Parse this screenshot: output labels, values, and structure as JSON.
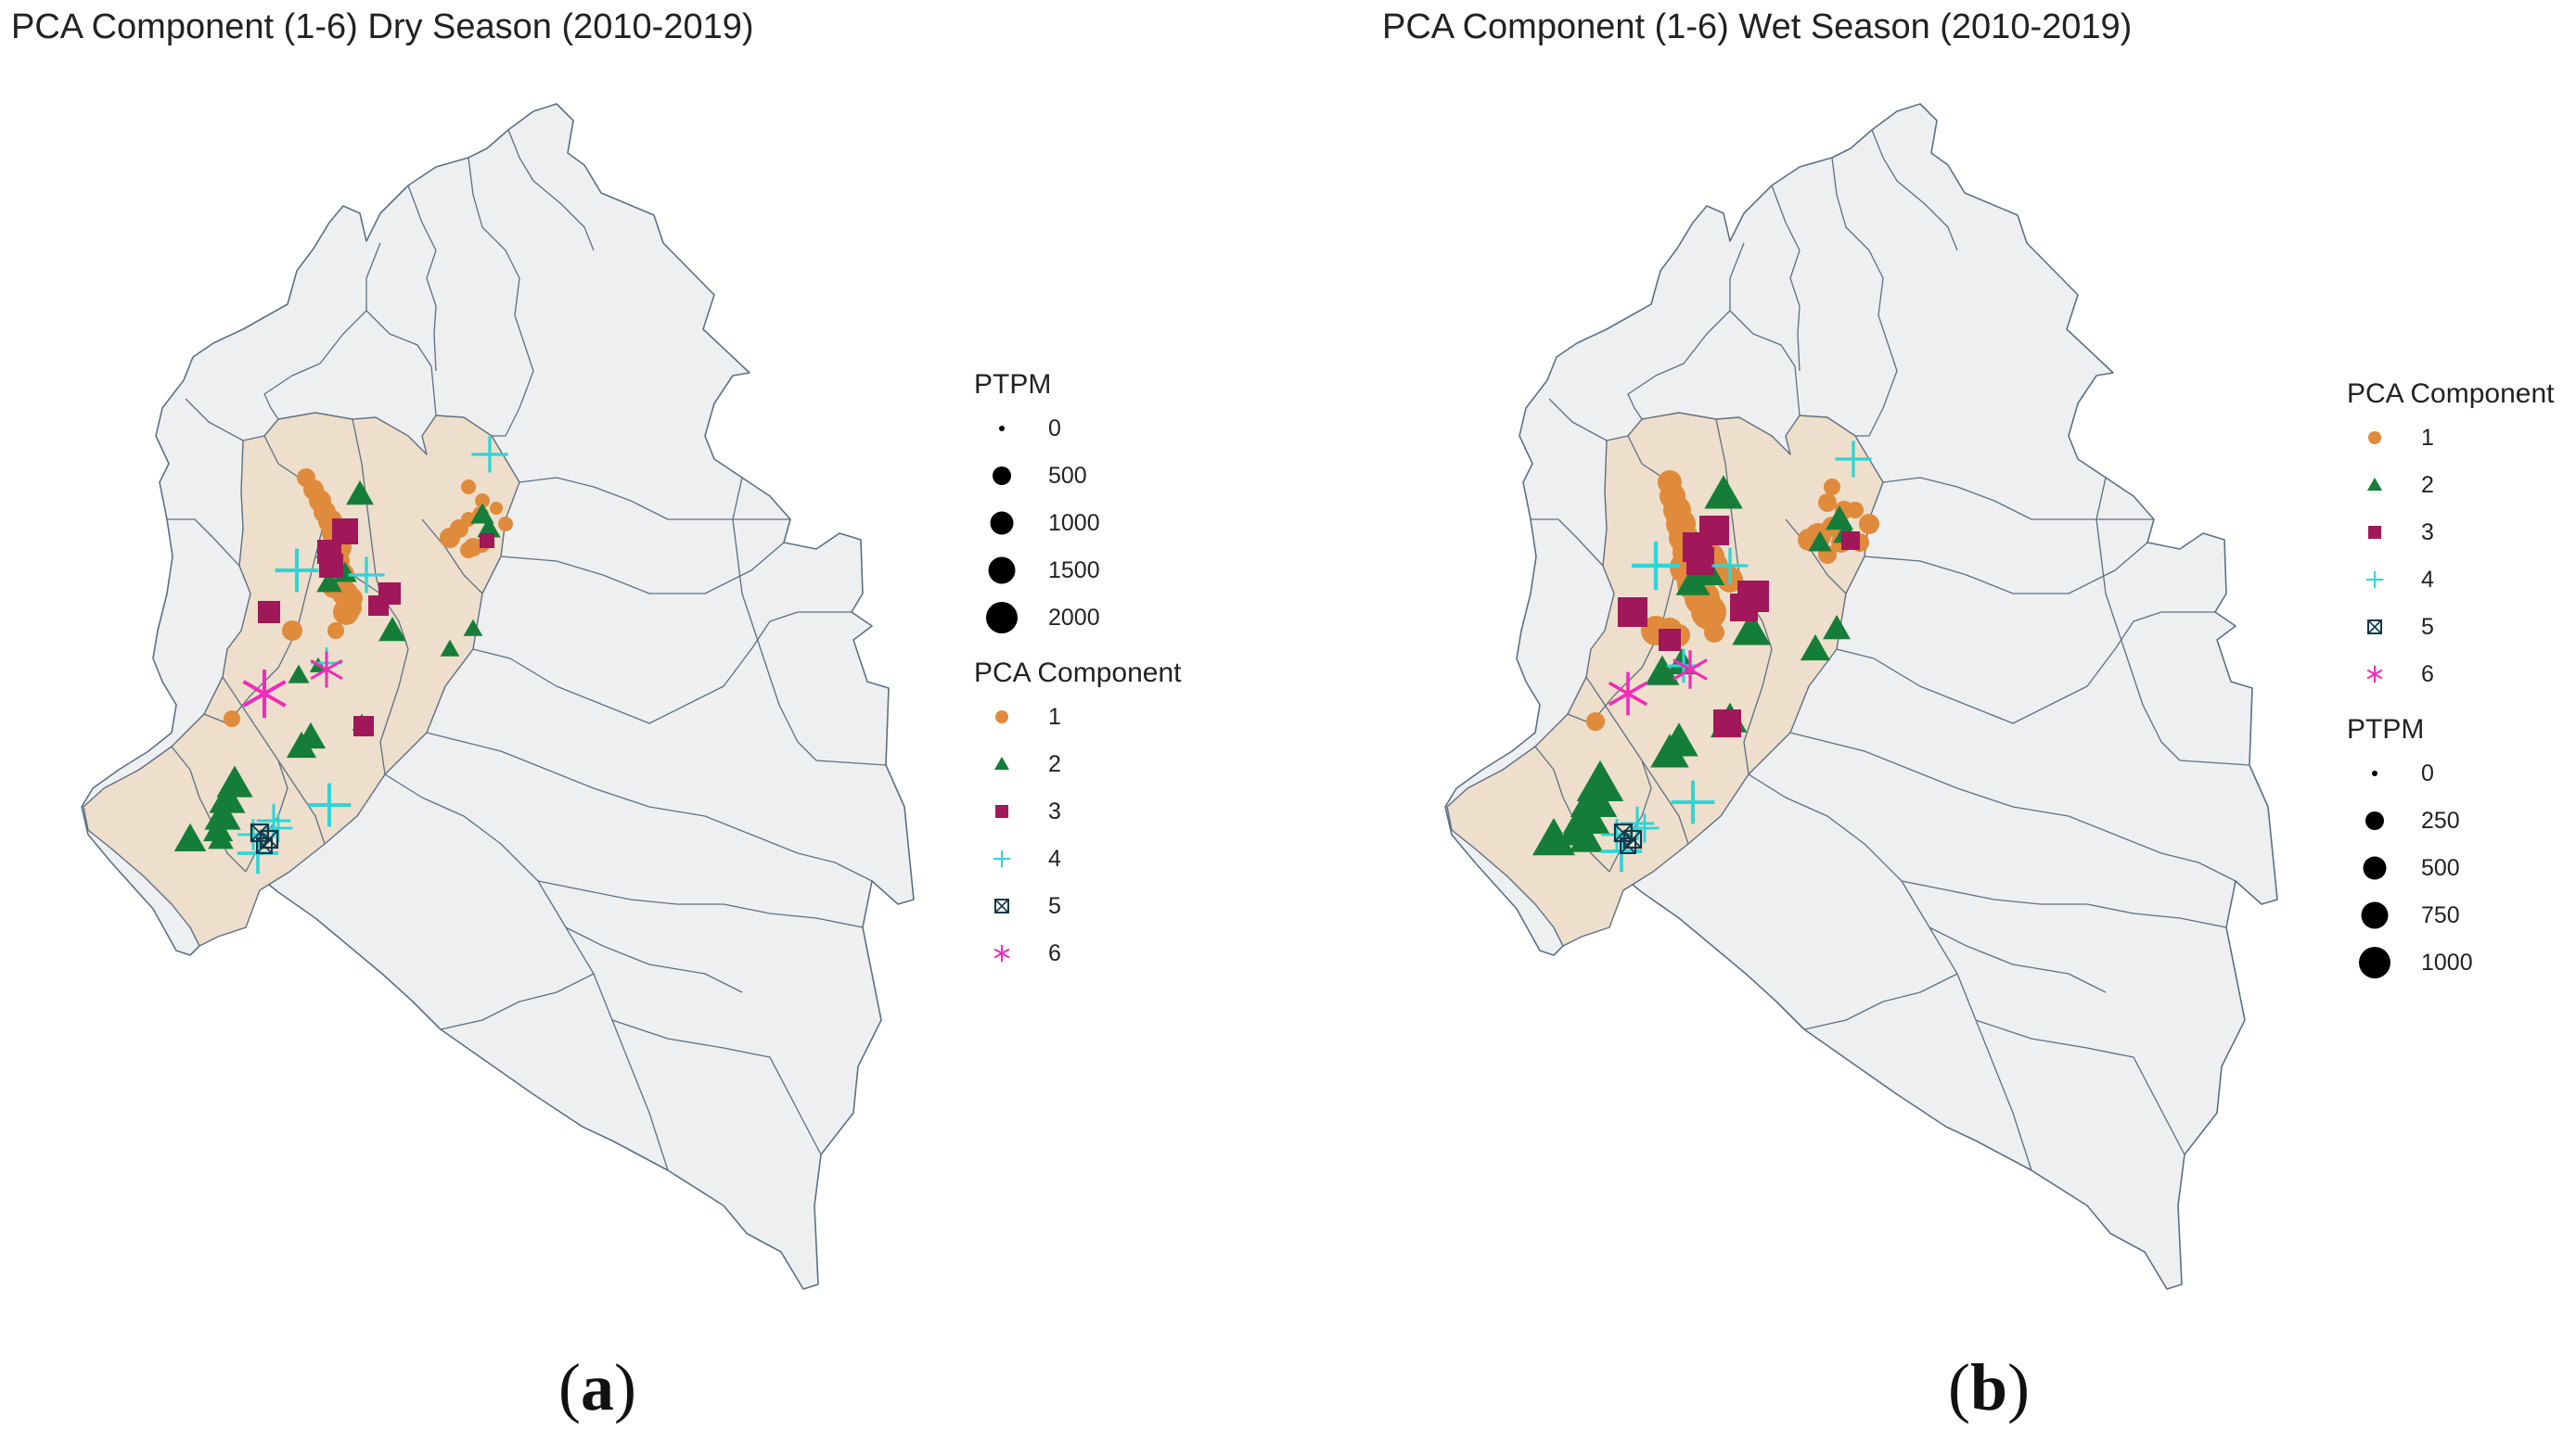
{
  "panels": [
    {
      "title": "PCA Component (1-6) Dry Season (2010-2019)",
      "letter_open": "(",
      "letter": "a",
      "letter_close": ")",
      "legend_order": [
        "size",
        "shape"
      ],
      "size_legend": {
        "title": "PTPM",
        "entries": [
          "0",
          "500",
          "1000",
          "1500",
          "2000"
        ]
      },
      "shape_legend": {
        "title": "PCA Component",
        "entries": [
          "1",
          "2",
          "3",
          "4",
          "5",
          "6"
        ]
      }
    },
    {
      "title": "PCA Component (1-6) Wet Season (2010-2019)",
      "letter_open": "(",
      "letter": "b",
      "letter_close": ")",
      "legend_order": [
        "shape",
        "size"
      ],
      "size_legend": {
        "title": "PTPM",
        "entries": [
          "0",
          "250",
          "500",
          "750",
          "1000"
        ]
      },
      "shape_legend": {
        "title": "PCA Component",
        "entries": [
          "1",
          "2",
          "3",
          "4",
          "5",
          "6"
        ]
      }
    }
  ],
  "components": [
    {
      "id": 1,
      "shape": "circle",
      "color": "#E08A3C"
    },
    {
      "id": 2,
      "shape": "triangle",
      "color": "#157D3A"
    },
    {
      "id": 3,
      "shape": "square",
      "color": "#A0185A"
    },
    {
      "id": 4,
      "shape": "plus",
      "color": "#2CD5D8"
    },
    {
      "id": 5,
      "shape": "square-x",
      "color": "#12384A"
    },
    {
      "id": 6,
      "shape": "asterisk",
      "color": "#F02BB8"
    }
  ],
  "colors": {
    "land": "#EEEFF1",
    "study_region": "#EDDFCB",
    "border": "#5E6F82"
  }
}
